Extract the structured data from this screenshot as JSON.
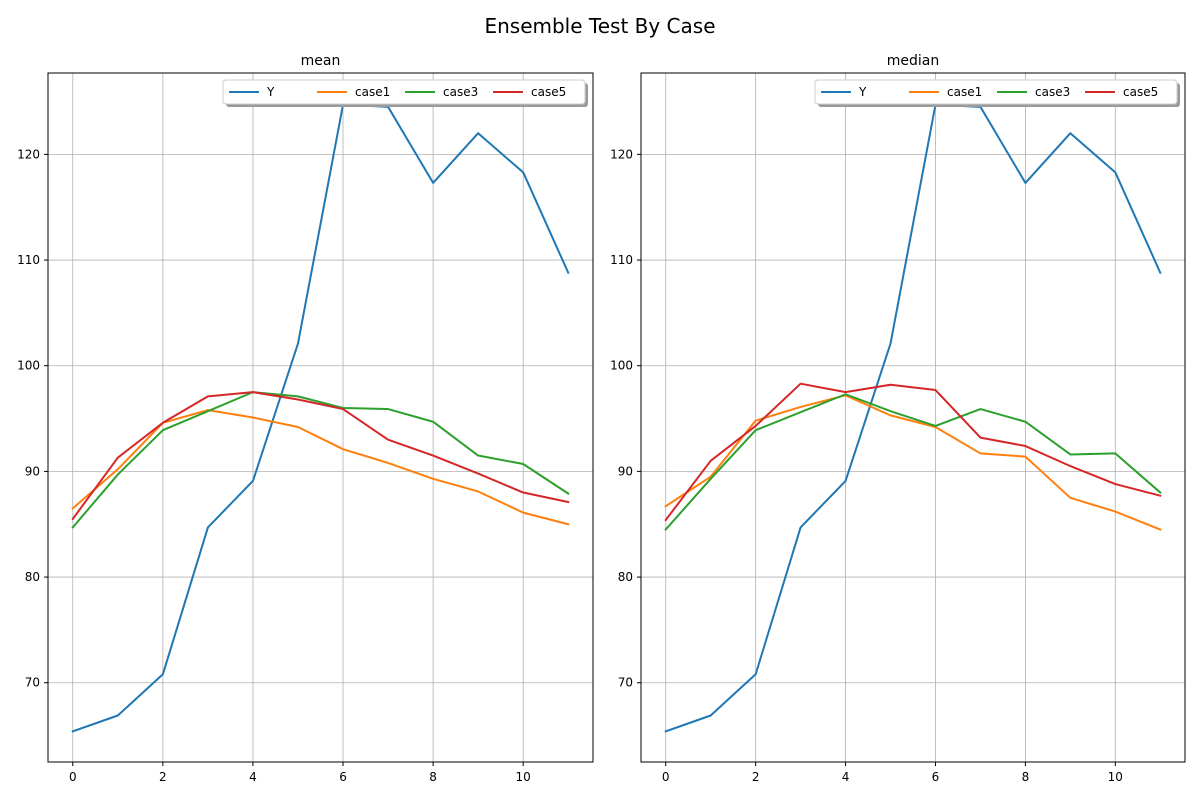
{
  "figure": {
    "suptitle": "Ensemble Test By Case"
  },
  "colors": {
    "Y": "#1f77b4",
    "case1": "#ff7f0e",
    "case3": "#2ca02c",
    "case5": "#d62728",
    "grid": "#b0b0b0"
  },
  "chart_data": [
    {
      "type": "line",
      "title": "mean",
      "xlabel": "",
      "ylabel": "",
      "x": [
        0,
        1,
        2,
        3,
        4,
        5,
        6,
        7,
        8,
        9,
        10,
        11
      ],
      "xlim": [
        -0.55,
        11.55
      ],
      "ylim": [
        62.5,
        127.7
      ],
      "xticks": [
        0,
        2,
        4,
        6,
        8,
        10
      ],
      "yticks": [
        70,
        80,
        90,
        100,
        110,
        120
      ],
      "grid": true,
      "legend": {
        "placement": "upper-right",
        "ncol": 4,
        "entries": [
          "Y",
          "case1",
          "case3",
          "case5"
        ]
      },
      "series": [
        {
          "name": "Y",
          "values": [
            65.4,
            66.9,
            70.8,
            84.7,
            89.1,
            102.1,
            124.7,
            124.5,
            117.3,
            122.0,
            118.3,
            108.8
          ]
        },
        {
          "name": "case1",
          "values": [
            86.5,
            90.2,
            94.6,
            95.8,
            95.1,
            94.2,
            92.1,
            90.8,
            89.3,
            88.1,
            86.1,
            85.0
          ]
        },
        {
          "name": "case3",
          "values": [
            84.7,
            89.7,
            93.9,
            95.7,
            97.5,
            97.1,
            96.0,
            95.9,
            94.7,
            91.5,
            90.7,
            87.9
          ]
        },
        {
          "name": "case5",
          "values": [
            85.5,
            91.3,
            94.6,
            97.1,
            97.5,
            96.8,
            95.9,
            93.0,
            91.5,
            89.8,
            88.0,
            87.1
          ]
        }
      ]
    },
    {
      "type": "line",
      "title": "median",
      "xlabel": "",
      "ylabel": "",
      "x": [
        0,
        1,
        2,
        3,
        4,
        5,
        6,
        7,
        8,
        9,
        10,
        11
      ],
      "xlim": [
        -0.55,
        11.55
      ],
      "ylim": [
        62.5,
        127.7
      ],
      "xticks": [
        0,
        2,
        4,
        6,
        8,
        10
      ],
      "yticks": [
        70,
        80,
        90,
        100,
        110,
        120
      ],
      "grid": true,
      "legend": {
        "placement": "upper-right",
        "ncol": 4,
        "entries": [
          "Y",
          "case1",
          "case3",
          "case5"
        ]
      },
      "series": [
        {
          "name": "Y",
          "values": [
            65.4,
            66.9,
            70.8,
            84.7,
            89.1,
            102.1,
            124.7,
            124.5,
            117.3,
            122.0,
            118.3,
            108.8
          ]
        },
        {
          "name": "case1",
          "values": [
            86.7,
            89.5,
            94.8,
            96.1,
            97.2,
            95.3,
            94.2,
            91.7,
            91.4,
            87.5,
            86.2,
            84.5
          ]
        },
        {
          "name": "case3",
          "values": [
            84.5,
            89.3,
            93.9,
            95.6,
            97.3,
            95.7,
            94.3,
            95.9,
            94.7,
            91.6,
            91.7,
            88.0
          ]
        },
        {
          "name": "case5",
          "values": [
            85.4,
            91.0,
            94.3,
            98.3,
            97.5,
            98.2,
            97.7,
            93.2,
            92.4,
            90.5,
            88.8,
            87.7
          ]
        }
      ]
    }
  ]
}
